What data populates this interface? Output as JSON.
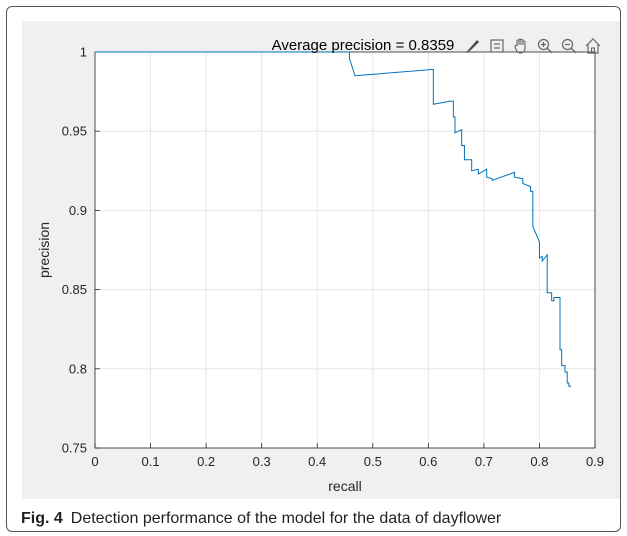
{
  "caption": {
    "label": "Fig. 4",
    "text": "Detection performance of the model for the data of dayflower"
  },
  "toolbar": {
    "icons": [
      "brush-icon",
      "data-tips-icon",
      "pan-hand-icon",
      "zoom-in-icon",
      "zoom-out-icon",
      "home-icon"
    ]
  },
  "chart_data": {
    "type": "line",
    "title": "Average precision = 0.8359",
    "xlabel": "recall",
    "ylabel": "precision",
    "xlim": [
      0,
      0.9
    ],
    "ylim": [
      0.75,
      1
    ],
    "xticks": [
      "0",
      "0.1",
      "0.2",
      "0.3",
      "0.4",
      "0.5",
      "0.6",
      "0.7",
      "0.8",
      "0.9"
    ],
    "yticks": [
      "0.75",
      "0.8",
      "0.85",
      "0.9",
      "0.95",
      "1"
    ],
    "grid": true,
    "line_color": "#0072bd",
    "series": [
      {
        "x": [
          0,
          0.458,
          0.458,
          0.468,
          0.609,
          0.609,
          0.64,
          0.645,
          0.645,
          0.648,
          0.648,
          0.66,
          0.66,
          0.665,
          0.665,
          0.678,
          0.678,
          0.69,
          0.69,
          0.705,
          0.705,
          0.715,
          0.715,
          0.755,
          0.755,
          0.77,
          0.77,
          0.784,
          0.784,
          0.788,
          0.788,
          0.8,
          0.8,
          0.805,
          0.805,
          0.814,
          0.814,
          0.822,
          0.822,
          0.826,
          0.826,
          0.837,
          0.837,
          0.84,
          0.84,
          0.846,
          0.846,
          0.85,
          0.85,
          0.853,
          0.853,
          0.857
        ],
        "y": [
          1,
          1,
          0.996,
          0.985,
          0.989,
          0.967,
          0.969,
          0.969,
          0.959,
          0.959,
          0.949,
          0.951,
          0.941,
          0.941,
          0.932,
          0.932,
          0.925,
          0.926,
          0.923,
          0.926,
          0.921,
          0.92,
          0.919,
          0.924,
          0.921,
          0.92,
          0.917,
          0.915,
          0.912,
          0.912,
          0.89,
          0.88,
          0.87,
          0.871,
          0.868,
          0.872,
          0.848,
          0.848,
          0.843,
          0.843,
          0.845,
          0.845,
          0.812,
          0.812,
          0.802,
          0.802,
          0.798,
          0.798,
          0.791,
          0.791,
          0.789,
          0.789
        ]
      }
    ]
  }
}
